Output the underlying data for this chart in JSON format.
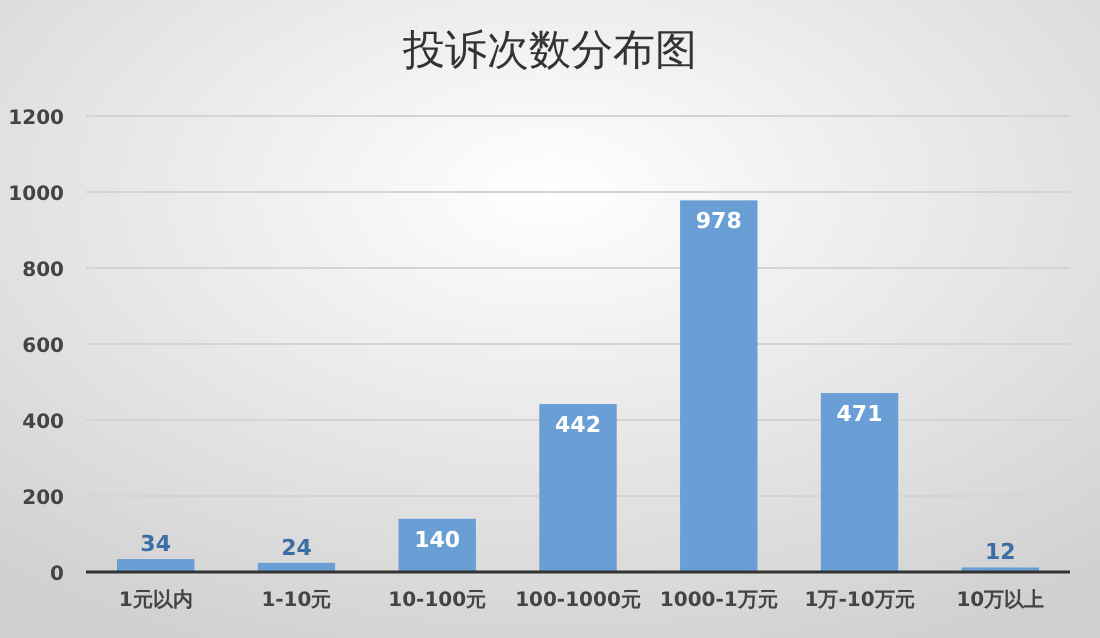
{
  "chart_data": {
    "type": "bar",
    "title": "投诉次数分布图",
    "categories": [
      "1元以内",
      "1-10元",
      "10-100元",
      "100-1000元",
      "1000-1万元",
      "1万-10万元",
      "10万以上"
    ],
    "values": [
      34,
      24,
      140,
      442,
      978,
      471,
      12
    ],
    "color": "#6a9fd6",
    "ylim": [
      0,
      1200
    ],
    "yticks": [
      0,
      200,
      400,
      600,
      800,
      1000,
      1200
    ],
    "grid": "y",
    "data_labels": true
  }
}
